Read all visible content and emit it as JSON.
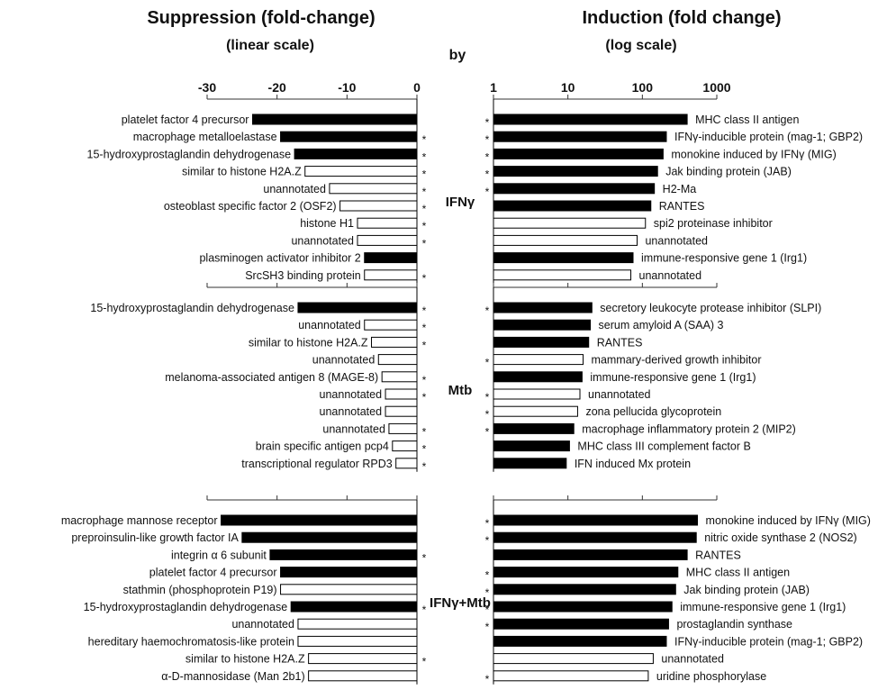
{
  "header": {
    "left_title": "Suppression (fold-change)",
    "left_scale": "(linear scale)",
    "right_title": "Induction (fold change)",
    "right_scale": "(log scale)",
    "by_label": "by"
  },
  "colors": {
    "filled": "#000000",
    "open": "#ffffff",
    "stroke": "#000000"
  },
  "chart_data": {
    "type": "bar",
    "suppression_axis": {
      "scale": "linear",
      "range": [
        -30,
        0
      ],
      "ticks": [
        "-30",
        "-20",
        "-10",
        "0"
      ]
    },
    "induction_axis": {
      "scale": "log",
      "range": [
        1,
        1000
      ],
      "ticks": [
        "1",
        "10",
        "100",
        "1000"
      ]
    },
    "panels": [
      {
        "condition": "IFNγ",
        "suppression": [
          {
            "gene": "platelet factor 4 precursor",
            "value": -23.5,
            "filled": true,
            "star": false
          },
          {
            "gene": "macrophage metalloelastase",
            "value": -19.5,
            "filled": true,
            "star": true
          },
          {
            "gene": "15-hydroxyprostaglandin dehydrogenase",
            "value": -17.5,
            "filled": true,
            "star": true
          },
          {
            "gene": "similar to histone H2A.Z",
            "value": -16,
            "filled": false,
            "star": true
          },
          {
            "gene": "unannotated",
            "value": -12.5,
            "filled": false,
            "star": true
          },
          {
            "gene": "osteoblast specific factor 2 (OSF2)",
            "value": -11,
            "filled": false,
            "star": true
          },
          {
            "gene": "histone H1",
            "value": -8.5,
            "filled": false,
            "star": true
          },
          {
            "gene": "unannotated",
            "value": -8.5,
            "filled": false,
            "star": true
          },
          {
            "gene": "plasminogen activator inhibitor 2",
            "value": -7.5,
            "filled": true,
            "star": false
          },
          {
            "gene": "SrcSH3 binding protein",
            "value": -7.5,
            "filled": false,
            "star": true
          }
        ],
        "induction": [
          {
            "gene": "MHC class II antigen",
            "value": 400,
            "filled": true,
            "star": true
          },
          {
            "gene": "IFNγ-inducible protein (mag-1; GBP2)",
            "value": 210,
            "filled": true,
            "star": true
          },
          {
            "gene": "monokine induced by IFNγ (MIG)",
            "value": 190,
            "filled": true,
            "star": true
          },
          {
            "gene": "Jak binding protein (JAB)",
            "value": 160,
            "filled": true,
            "star": true
          },
          {
            "gene": "H2-Ma",
            "value": 145,
            "filled": true,
            "star": true
          },
          {
            "gene": "RANTES",
            "value": 130,
            "filled": true,
            "star": false
          },
          {
            "gene": "spi2 proteinase inhibitor",
            "value": 110,
            "filled": false,
            "star": false
          },
          {
            "gene": "unannotated",
            "value": 85,
            "filled": false,
            "star": false
          },
          {
            "gene": "immune-responsive gene 1 (Irg1)",
            "value": 75,
            "filled": true,
            "star": false
          },
          {
            "gene": "unannotated",
            "value": 70,
            "filled": false,
            "star": false
          }
        ]
      },
      {
        "condition": "Mtb",
        "suppression": [
          {
            "gene": "15-hydroxyprostaglandin dehydrogenase",
            "value": -17,
            "filled": true,
            "star": true
          },
          {
            "gene": "unannotated",
            "value": -7.5,
            "filled": false,
            "star": true
          },
          {
            "gene": "similar to histone H2A.Z",
            "value": -6.5,
            "filled": false,
            "star": true
          },
          {
            "gene": "unannotated",
            "value": -5.5,
            "filled": false,
            "star": false
          },
          {
            "gene": "melanoma-associated antigen 8 (MAGE-8)",
            "value": -5,
            "filled": false,
            "star": true
          },
          {
            "gene": "unannotated",
            "value": -4.5,
            "filled": false,
            "star": true
          },
          {
            "gene": "unannotated",
            "value": -4.5,
            "filled": false,
            "star": false
          },
          {
            "gene": "unannotated",
            "value": -4,
            "filled": false,
            "star": true
          },
          {
            "gene": "brain specific antigen pcp4",
            "value": -3.5,
            "filled": false,
            "star": true
          },
          {
            "gene": "transcriptional regulator RPD3",
            "value": -3,
            "filled": false,
            "star": true
          }
        ],
        "induction": [
          {
            "gene": "secretory leukocyte protease inhibitor (SLPI)",
            "value": 21,
            "filled": true,
            "star": true
          },
          {
            "gene": "serum amyloid A (SAA) 3",
            "value": 20,
            "filled": true,
            "star": false
          },
          {
            "gene": "RANTES",
            "value": 19,
            "filled": true,
            "star": false
          },
          {
            "gene": "mammary-derived growth inhibitor",
            "value": 16,
            "filled": false,
            "star": true
          },
          {
            "gene": "immune-responsive gene 1 (Irg1)",
            "value": 15.5,
            "filled": true,
            "star": false
          },
          {
            "gene": "unannotated",
            "value": 14.5,
            "filled": false,
            "star": true
          },
          {
            "gene": "zona pellucida glycoprotein",
            "value": 13.5,
            "filled": false,
            "star": true
          },
          {
            "gene": "macrophage inflammatory protein 2 (MIP2)",
            "value": 12,
            "filled": true,
            "star": true
          },
          {
            "gene": "MHC class III complement factor B",
            "value": 10.5,
            "filled": true,
            "star": false
          },
          {
            "gene": "IFN induced Mx protein",
            "value": 9.5,
            "filled": true,
            "star": false
          }
        ]
      },
      {
        "condition": "IFNγ+Mtb",
        "suppression": [
          {
            "gene": "macrophage mannose receptor",
            "value": -28,
            "filled": true,
            "star": false
          },
          {
            "gene": "preproinsulin-like growth factor IA",
            "value": -25,
            "filled": true,
            "star": false
          },
          {
            "gene": "integrin α 6 subunit",
            "value": -21,
            "filled": true,
            "star": true
          },
          {
            "gene": "platelet factor 4 precursor",
            "value": -19.5,
            "filled": true,
            "star": false
          },
          {
            "gene": "stathmin (phosphoprotein P19)",
            "value": -19.5,
            "filled": false,
            "star": false
          },
          {
            "gene": "15-hydroxyprostaglandin dehydrogenase",
            "value": -18,
            "filled": true,
            "star": true
          },
          {
            "gene": "unannotated",
            "value": -17,
            "filled": false,
            "star": false
          },
          {
            "gene": "hereditary haemochromatosis-like protein",
            "value": -17,
            "filled": false,
            "star": false
          },
          {
            "gene": "similar to histone H2A.Z",
            "value": -15.5,
            "filled": false,
            "star": true
          },
          {
            "gene": "α-D-mannosidase (Man 2b1)",
            "value": -15.5,
            "filled": false,
            "star": false
          }
        ],
        "induction": [
          {
            "gene": "monokine induced by IFNγ (MIG)",
            "value": 550,
            "filled": true,
            "star": true
          },
          {
            "gene": "nitric oxide synthase 2 (NOS2)",
            "value": 530,
            "filled": true,
            "star": true
          },
          {
            "gene": "RANTES",
            "value": 400,
            "filled": true,
            "star": false
          },
          {
            "gene": "MHC class II antigen",
            "value": 300,
            "filled": true,
            "star": true
          },
          {
            "gene": "Jak binding protein (JAB)",
            "value": 280,
            "filled": true,
            "star": true
          },
          {
            "gene": "immune-responsive gene 1 (Irg1)",
            "value": 250,
            "filled": true,
            "star": true
          },
          {
            "gene": "prostaglandin synthase",
            "value": 225,
            "filled": true,
            "star": true
          },
          {
            "gene": "IFNγ-inducible protein (mag-1; GBP2)",
            "value": 210,
            "filled": true,
            "star": false
          },
          {
            "gene": "unannotated",
            "value": 140,
            "filled": false,
            "star": false
          },
          {
            "gene": "uridine phosphorylase",
            "value": 120,
            "filled": false,
            "star": true
          }
        ]
      }
    ]
  }
}
